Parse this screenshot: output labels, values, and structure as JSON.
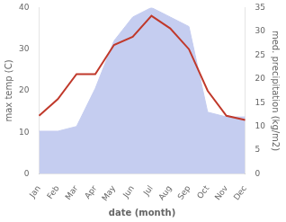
{
  "chart_data": {
    "type": "line",
    "xlabel": "date (month)",
    "ylabel": "max temp (C)",
    "y2label": "med. precipitation (kg/m2)",
    "categories": [
      "Jan",
      "Feb",
      "Mar",
      "Apr",
      "May",
      "Jun",
      "Jul",
      "Aug",
      "Sep",
      "Oct",
      "Nov",
      "Dec"
    ],
    "series": [
      {
        "type": "line",
        "color": "#c0392b",
        "values": [
          14,
          18,
          24,
          24,
          31,
          33,
          38,
          35,
          30,
          20,
          14,
          13
        ]
      },
      {
        "type": "area",
        "color": "#c5cdf0",
        "axis": "y2",
        "values": [
          9,
          9,
          10,
          18,
          28,
          33,
          35,
          33,
          31,
          13,
          12,
          12
        ]
      }
    ],
    "ylim": [
      0,
      40
    ],
    "yticks": [
      0,
      10,
      20,
      30,
      40
    ],
    "y2lim": [
      0,
      35
    ],
    "y2ticks": [
      0,
      5,
      10,
      15,
      20,
      25,
      30,
      35
    ],
    "grid": false
  }
}
